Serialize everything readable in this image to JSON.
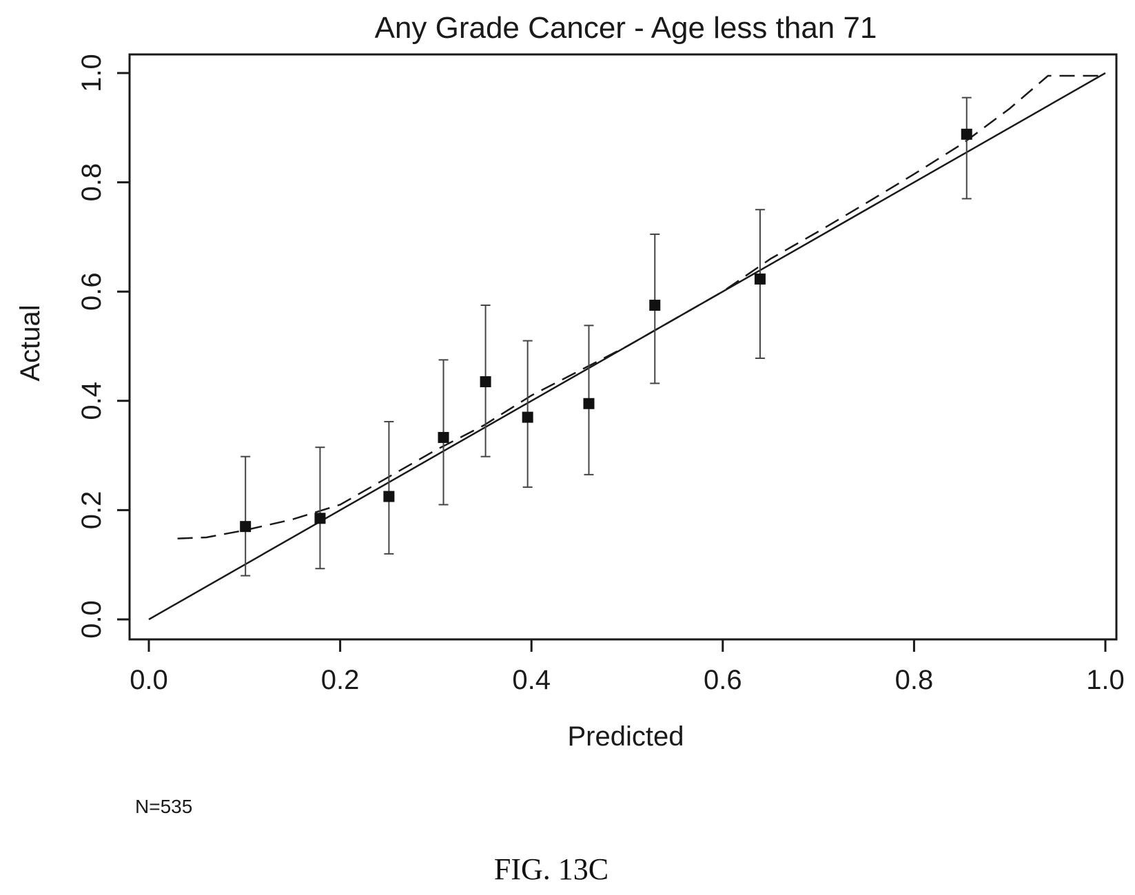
{
  "figure": {
    "caption": "FIG. 13C",
    "note": "N=535"
  },
  "chart_data": {
    "type": "scatter",
    "title": "Any Grade Cancer - Age less than 71",
    "xlabel": "Predicted",
    "ylabel": "Actual",
    "xlim": [
      0.0,
      1.0
    ],
    "ylim": [
      0.0,
      1.0
    ],
    "xticks": [
      "0.0",
      "0.2",
      "0.4",
      "0.6",
      "0.8",
      "1.0"
    ],
    "yticks": [
      "0.0",
      "0.2",
      "0.4",
      "0.6",
      "0.8",
      "1.0"
    ],
    "grid": false,
    "legend": "none",
    "series": [
      {
        "kind": "points-with-error-bars",
        "points": [
          {
            "x": 0.101,
            "y": 0.17,
            "lo": 0.08,
            "hi": 0.298
          },
          {
            "x": 0.179,
            "y": 0.185,
            "lo": 0.093,
            "hi": 0.315
          },
          {
            "x": 0.251,
            "y": 0.225,
            "lo": 0.12,
            "hi": 0.362
          },
          {
            "x": 0.308,
            "y": 0.333,
            "lo": 0.21,
            "hi": 0.475
          },
          {
            "x": 0.352,
            "y": 0.435,
            "lo": 0.298,
            "hi": 0.575
          },
          {
            "x": 0.396,
            "y": 0.37,
            "lo": 0.242,
            "hi": 0.51
          },
          {
            "x": 0.46,
            "y": 0.395,
            "lo": 0.265,
            "hi": 0.538
          },
          {
            "x": 0.529,
            "y": 0.575,
            "lo": 0.432,
            "hi": 0.705
          },
          {
            "x": 0.639,
            "y": 0.623,
            "lo": 0.478,
            "hi": 0.75
          },
          {
            "x": 0.855,
            "y": 0.888,
            "lo": 0.77,
            "hi": 0.955
          }
        ]
      },
      {
        "kind": "line-solid",
        "x": [
          0.0,
          1.0
        ],
        "y": [
          0.0,
          1.0
        ]
      },
      {
        "kind": "line-dashed",
        "x": [
          0.03,
          0.06,
          0.1,
          0.15,
          0.2,
          0.25,
          0.3,
          0.35,
          0.4,
          0.45,
          0.5,
          0.55,
          0.6,
          0.65,
          0.7,
          0.75,
          0.8,
          0.85,
          0.9,
          0.94,
          1.0
        ],
        "y": [
          0.148,
          0.15,
          0.163,
          0.183,
          0.21,
          0.26,
          0.31,
          0.355,
          0.41,
          0.455,
          0.5,
          0.55,
          0.6,
          0.66,
          0.71,
          0.762,
          0.815,
          0.87,
          0.935,
          0.995,
          0.995
        ]
      }
    ]
  }
}
